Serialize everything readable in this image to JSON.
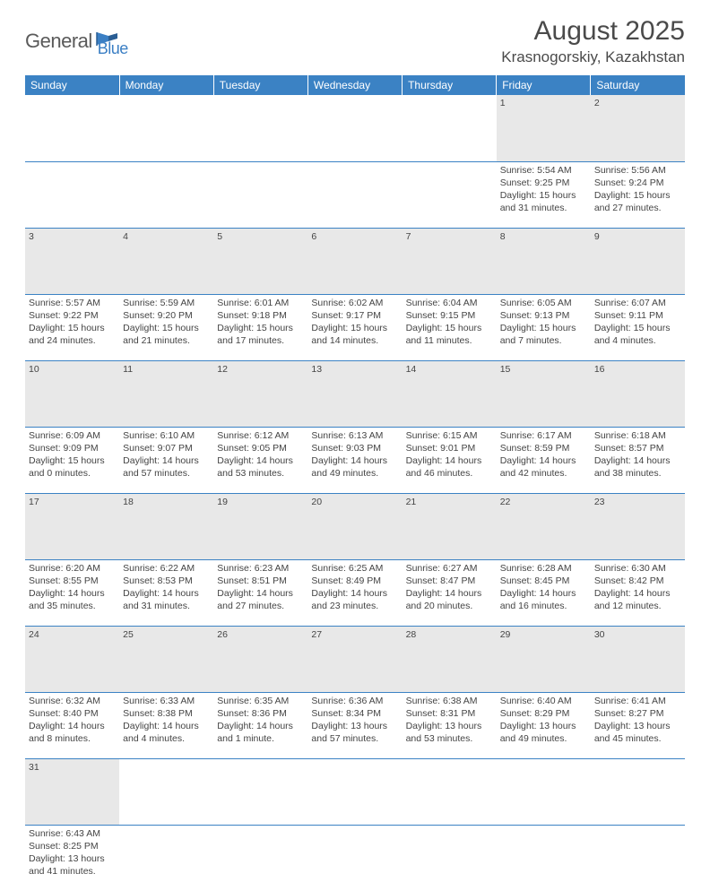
{
  "logo": {
    "text1": "General",
    "text2": "Blue"
  },
  "title": "August 2025",
  "location": "Krasnogorskiy, Kazakhstan",
  "day_headers": [
    "Sunday",
    "Monday",
    "Tuesday",
    "Wednesday",
    "Thursday",
    "Friday",
    "Saturday"
  ],
  "colors": {
    "header_bg": "#3b82c4",
    "header_fg": "#ffffff",
    "daynum_bg": "#e8e8e8",
    "border": "#3b82c4",
    "text": "#444444"
  },
  "weeks": [
    [
      null,
      null,
      null,
      null,
      null,
      {
        "n": "1",
        "sr": "Sunrise: 5:54 AM",
        "ss": "Sunset: 9:25 PM",
        "d1": "Daylight: 15 hours",
        "d2": "and 31 minutes."
      },
      {
        "n": "2",
        "sr": "Sunrise: 5:56 AM",
        "ss": "Sunset: 9:24 PM",
        "d1": "Daylight: 15 hours",
        "d2": "and 27 minutes."
      }
    ],
    [
      {
        "n": "3",
        "sr": "Sunrise: 5:57 AM",
        "ss": "Sunset: 9:22 PM",
        "d1": "Daylight: 15 hours",
        "d2": "and 24 minutes."
      },
      {
        "n": "4",
        "sr": "Sunrise: 5:59 AM",
        "ss": "Sunset: 9:20 PM",
        "d1": "Daylight: 15 hours",
        "d2": "and 21 minutes."
      },
      {
        "n": "5",
        "sr": "Sunrise: 6:01 AM",
        "ss": "Sunset: 9:18 PM",
        "d1": "Daylight: 15 hours",
        "d2": "and 17 minutes."
      },
      {
        "n": "6",
        "sr": "Sunrise: 6:02 AM",
        "ss": "Sunset: 9:17 PM",
        "d1": "Daylight: 15 hours",
        "d2": "and 14 minutes."
      },
      {
        "n": "7",
        "sr": "Sunrise: 6:04 AM",
        "ss": "Sunset: 9:15 PM",
        "d1": "Daylight: 15 hours",
        "d2": "and 11 minutes."
      },
      {
        "n": "8",
        "sr": "Sunrise: 6:05 AM",
        "ss": "Sunset: 9:13 PM",
        "d1": "Daylight: 15 hours",
        "d2": "and 7 minutes."
      },
      {
        "n": "9",
        "sr": "Sunrise: 6:07 AM",
        "ss": "Sunset: 9:11 PM",
        "d1": "Daylight: 15 hours",
        "d2": "and 4 minutes."
      }
    ],
    [
      {
        "n": "10",
        "sr": "Sunrise: 6:09 AM",
        "ss": "Sunset: 9:09 PM",
        "d1": "Daylight: 15 hours",
        "d2": "and 0 minutes."
      },
      {
        "n": "11",
        "sr": "Sunrise: 6:10 AM",
        "ss": "Sunset: 9:07 PM",
        "d1": "Daylight: 14 hours",
        "d2": "and 57 minutes."
      },
      {
        "n": "12",
        "sr": "Sunrise: 6:12 AM",
        "ss": "Sunset: 9:05 PM",
        "d1": "Daylight: 14 hours",
        "d2": "and 53 minutes."
      },
      {
        "n": "13",
        "sr": "Sunrise: 6:13 AM",
        "ss": "Sunset: 9:03 PM",
        "d1": "Daylight: 14 hours",
        "d2": "and 49 minutes."
      },
      {
        "n": "14",
        "sr": "Sunrise: 6:15 AM",
        "ss": "Sunset: 9:01 PM",
        "d1": "Daylight: 14 hours",
        "d2": "and 46 minutes."
      },
      {
        "n": "15",
        "sr": "Sunrise: 6:17 AM",
        "ss": "Sunset: 8:59 PM",
        "d1": "Daylight: 14 hours",
        "d2": "and 42 minutes."
      },
      {
        "n": "16",
        "sr": "Sunrise: 6:18 AM",
        "ss": "Sunset: 8:57 PM",
        "d1": "Daylight: 14 hours",
        "d2": "and 38 minutes."
      }
    ],
    [
      {
        "n": "17",
        "sr": "Sunrise: 6:20 AM",
        "ss": "Sunset: 8:55 PM",
        "d1": "Daylight: 14 hours",
        "d2": "and 35 minutes."
      },
      {
        "n": "18",
        "sr": "Sunrise: 6:22 AM",
        "ss": "Sunset: 8:53 PM",
        "d1": "Daylight: 14 hours",
        "d2": "and 31 minutes."
      },
      {
        "n": "19",
        "sr": "Sunrise: 6:23 AM",
        "ss": "Sunset: 8:51 PM",
        "d1": "Daylight: 14 hours",
        "d2": "and 27 minutes."
      },
      {
        "n": "20",
        "sr": "Sunrise: 6:25 AM",
        "ss": "Sunset: 8:49 PM",
        "d1": "Daylight: 14 hours",
        "d2": "and 23 minutes."
      },
      {
        "n": "21",
        "sr": "Sunrise: 6:27 AM",
        "ss": "Sunset: 8:47 PM",
        "d1": "Daylight: 14 hours",
        "d2": "and 20 minutes."
      },
      {
        "n": "22",
        "sr": "Sunrise: 6:28 AM",
        "ss": "Sunset: 8:45 PM",
        "d1": "Daylight: 14 hours",
        "d2": "and 16 minutes."
      },
      {
        "n": "23",
        "sr": "Sunrise: 6:30 AM",
        "ss": "Sunset: 8:42 PM",
        "d1": "Daylight: 14 hours",
        "d2": "and 12 minutes."
      }
    ],
    [
      {
        "n": "24",
        "sr": "Sunrise: 6:32 AM",
        "ss": "Sunset: 8:40 PM",
        "d1": "Daylight: 14 hours",
        "d2": "and 8 minutes."
      },
      {
        "n": "25",
        "sr": "Sunrise: 6:33 AM",
        "ss": "Sunset: 8:38 PM",
        "d1": "Daylight: 14 hours",
        "d2": "and 4 minutes."
      },
      {
        "n": "26",
        "sr": "Sunrise: 6:35 AM",
        "ss": "Sunset: 8:36 PM",
        "d1": "Daylight: 14 hours",
        "d2": "and 1 minute."
      },
      {
        "n": "27",
        "sr": "Sunrise: 6:36 AM",
        "ss": "Sunset: 8:34 PM",
        "d1": "Daylight: 13 hours",
        "d2": "and 57 minutes."
      },
      {
        "n": "28",
        "sr": "Sunrise: 6:38 AM",
        "ss": "Sunset: 8:31 PM",
        "d1": "Daylight: 13 hours",
        "d2": "and 53 minutes."
      },
      {
        "n": "29",
        "sr": "Sunrise: 6:40 AM",
        "ss": "Sunset: 8:29 PM",
        "d1": "Daylight: 13 hours",
        "d2": "and 49 minutes."
      },
      {
        "n": "30",
        "sr": "Sunrise: 6:41 AM",
        "ss": "Sunset: 8:27 PM",
        "d1": "Daylight: 13 hours",
        "d2": "and 45 minutes."
      }
    ],
    [
      {
        "n": "31",
        "sr": "Sunrise: 6:43 AM",
        "ss": "Sunset: 8:25 PM",
        "d1": "Daylight: 13 hours",
        "d2": "and 41 minutes."
      },
      null,
      null,
      null,
      null,
      null,
      null
    ]
  ]
}
